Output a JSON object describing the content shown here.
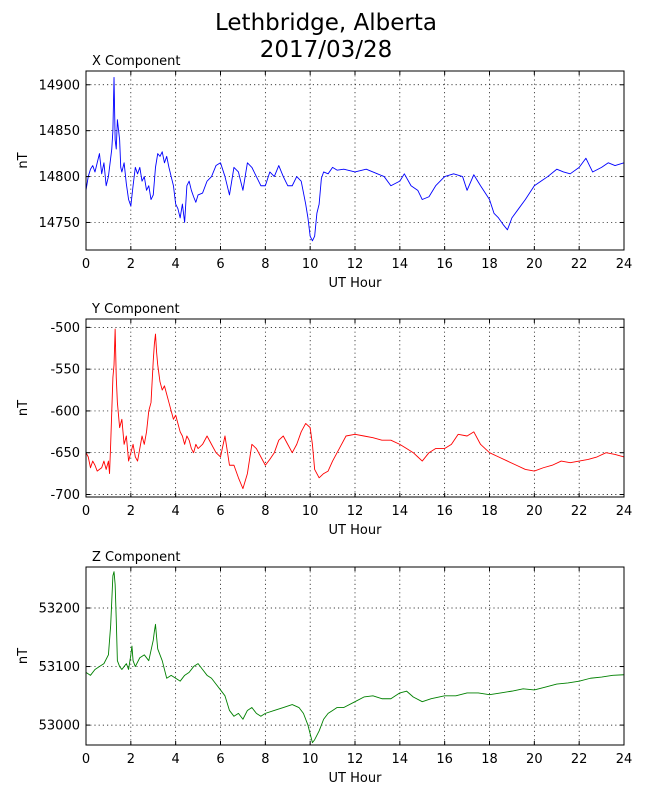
{
  "figure": {
    "title_line1": "Lethbridge, Alberta",
    "title_line2": "2017/03/28"
  },
  "chart_data": [
    {
      "type": "line",
      "title": "X Component",
      "xlabel": "UT Hour",
      "ylabel": "nT",
      "xlim": [
        0,
        24
      ],
      "ylim": [
        14720,
        14915
      ],
      "xticks": [
        0,
        2,
        4,
        6,
        8,
        10,
        12,
        14,
        16,
        18,
        20,
        22,
        24
      ],
      "yticks": [
        14750,
        14800,
        14850,
        14900
      ],
      "grid": true,
      "color": "#0000ff",
      "series": [
        {
          "x": [
            0,
            0.1,
            0.2,
            0.3,
            0.4,
            0.5,
            0.6,
            0.7,
            0.8,
            0.9,
            1.0,
            1.1,
            1.15,
            1.2,
            1.25,
            1.3,
            1.35,
            1.4,
            1.5,
            1.55,
            1.6,
            1.7,
            1.8,
            1.9,
            2.0,
            2.1,
            2.2,
            2.3,
            2.4,
            2.5,
            2.6,
            2.7,
            2.8,
            2.9,
            3.0,
            3.1,
            3.2,
            3.3,
            3.4,
            3.5,
            3.6,
            3.7,
            3.8,
            3.9,
            4.0,
            4.1,
            4.2,
            4.3,
            4.4,
            4.5,
            4.6,
            4.7,
            4.8,
            4.9,
            5.0,
            5.2,
            5.4,
            5.6,
            5.8,
            6.0,
            6.2,
            6.4,
            6.6,
            6.8,
            7.0,
            7.2,
            7.4,
            7.6,
            7.8,
            8.0,
            8.2,
            8.4,
            8.6,
            8.8,
            9.0,
            9.2,
            9.4,
            9.6,
            9.8,
            9.9,
            10.0,
            10.1,
            10.2,
            10.3,
            10.4,
            10.5,
            10.6,
            10.8,
            11.0,
            11.2,
            11.5,
            12.0,
            12.5,
            13.0,
            13.3,
            13.6,
            14.0,
            14.2,
            14.5,
            14.8,
            15.0,
            15.3,
            15.6,
            16.0,
            16.4,
            16.8,
            17.0,
            17.3,
            17.6,
            18.0,
            18.2,
            18.4,
            18.6,
            18.8,
            19.0,
            19.3,
            19.6,
            20.0,
            20.3,
            20.6,
            21.0,
            21.3,
            21.6,
            22.0,
            22.3,
            22.6,
            23.0,
            23.3,
            23.6,
            24.0
          ],
          "y": [
            14785,
            14800,
            14808,
            14812,
            14805,
            14815,
            14825,
            14803,
            14815,
            14790,
            14800,
            14820,
            14830,
            14850,
            14908,
            14840,
            14830,
            14862,
            14840,
            14810,
            14805,
            14815,
            14792,
            14775,
            14768,
            14790,
            14810,
            14803,
            14810,
            14795,
            14800,
            14785,
            14790,
            14775,
            14780,
            14810,
            14825,
            14822,
            14827,
            14815,
            14822,
            14810,
            14800,
            14790,
            14770,
            14765,
            14755,
            14770,
            14750,
            14790,
            14795,
            14785,
            14778,
            14772,
            14780,
            14782,
            14795,
            14800,
            14812,
            14815,
            14800,
            14780,
            14810,
            14805,
            14785,
            14815,
            14810,
            14800,
            14790,
            14790,
            14805,
            14800,
            14812,
            14800,
            14790,
            14790,
            14800,
            14795,
            14770,
            14755,
            14735,
            14730,
            14735,
            14760,
            14770,
            14798,
            14805,
            14803,
            14810,
            14807,
            14808,
            14805,
            14808,
            14803,
            14800,
            14790,
            14795,
            14803,
            14790,
            14785,
            14775,
            14778,
            14790,
            14800,
            14803,
            14800,
            14785,
            14802,
            14790,
            14775,
            14760,
            14755,
            14748,
            14742,
            14755,
            14765,
            14775,
            14790,
            14795,
            14800,
            14808,
            14805,
            14803,
            14810,
            14820,
            14805,
            14810,
            14815,
            14812,
            14815
          ]
        }
      ]
    },
    {
      "type": "line",
      "title": "Y Component",
      "xlabel": "UT Hour",
      "ylabel": "nT",
      "xlim": [
        0,
        24
      ],
      "ylim": [
        -703,
        -490
      ],
      "xticks": [
        0,
        2,
        4,
        6,
        8,
        10,
        12,
        14,
        16,
        18,
        20,
        22,
        24
      ],
      "yticks": [
        -700,
        -650,
        -600,
        -550,
        -500
      ],
      "grid": true,
      "color": "#ff0000",
      "series": [
        {
          "x": [
            0,
            0.1,
            0.2,
            0.3,
            0.4,
            0.5,
            0.6,
            0.7,
            0.8,
            0.9,
            1.0,
            1.05,
            1.1,
            1.2,
            1.25,
            1.3,
            1.35,
            1.4,
            1.5,
            1.6,
            1.7,
            1.8,
            1.9,
            2.0,
            2.1,
            2.2,
            2.3,
            2.4,
            2.5,
            2.6,
            2.7,
            2.8,
            2.9,
            3.0,
            3.05,
            3.1,
            3.15,
            3.2,
            3.3,
            3.4,
            3.5,
            3.6,
            3.7,
            3.8,
            3.9,
            4.0,
            4.1,
            4.2,
            4.3,
            4.4,
            4.5,
            4.6,
            4.7,
            4.8,
            4.9,
            5.0,
            5.2,
            5.4,
            5.6,
            5.8,
            6.0,
            6.2,
            6.4,
            6.6,
            6.8,
            7.0,
            7.2,
            7.4,
            7.6,
            7.8,
            8.0,
            8.2,
            8.4,
            8.6,
            8.8,
            9.0,
            9.2,
            9.4,
            9.6,
            9.8,
            10.0,
            10.1,
            10.2,
            10.4,
            10.6,
            10.8,
            11.0,
            11.3,
            11.6,
            12.0,
            12.4,
            12.8,
            13.2,
            13.6,
            14.0,
            14.3,
            14.6,
            14.8,
            15.0,
            15.3,
            15.6,
            16.0,
            16.3,
            16.6,
            17.0,
            17.3,
            17.6,
            18.0,
            18.4,
            18.8,
            19.2,
            19.6,
            20.0,
            20.4,
            20.8,
            21.2,
            21.6,
            22.0,
            22.4,
            22.8,
            23.2,
            23.6,
            24.0
          ],
          "y": [
            -650,
            -655,
            -668,
            -660,
            -665,
            -672,
            -670,
            -668,
            -660,
            -670,
            -660,
            -675,
            -640,
            -560,
            -545,
            -502,
            -560,
            -590,
            -620,
            -610,
            -640,
            -630,
            -660,
            -650,
            -640,
            -655,
            -660,
            -645,
            -630,
            -640,
            -625,
            -600,
            -590,
            -540,
            -520,
            -508,
            -530,
            -545,
            -565,
            -575,
            -570,
            -580,
            -590,
            -600,
            -610,
            -605,
            -615,
            -625,
            -630,
            -640,
            -630,
            -635,
            -645,
            -650,
            -640,
            -645,
            -640,
            -630,
            -640,
            -650,
            -655,
            -630,
            -665,
            -665,
            -680,
            -693,
            -675,
            -640,
            -645,
            -655,
            -665,
            -658,
            -650,
            -635,
            -630,
            -640,
            -650,
            -640,
            -625,
            -615,
            -620,
            -640,
            -670,
            -680,
            -675,
            -672,
            -660,
            -645,
            -630,
            -628,
            -630,
            -632,
            -635,
            -635,
            -640,
            -645,
            -650,
            -655,
            -660,
            -650,
            -645,
            -645,
            -640,
            -628,
            -630,
            -625,
            -640,
            -650,
            -655,
            -660,
            -665,
            -670,
            -672,
            -668,
            -665,
            -660,
            -662,
            -660,
            -658,
            -655,
            -650,
            -652,
            -655
          ]
        }
      ]
    },
    {
      "type": "line",
      "title": "Z Component",
      "xlabel": "UT Hour",
      "ylabel": "nT",
      "xlim": [
        0,
        24
      ],
      "ylim": [
        52966,
        53270
      ],
      "xticks": [
        0,
        2,
        4,
        6,
        8,
        10,
        12,
        14,
        16,
        18,
        20,
        22,
        24
      ],
      "yticks": [
        53000,
        53100,
        53200
      ],
      "grid": true,
      "color": "#008000",
      "series": [
        {
          "x": [
            0,
            0.2,
            0.4,
            0.6,
            0.8,
            1.0,
            1.1,
            1.2,
            1.25,
            1.3,
            1.35,
            1.4,
            1.5,
            1.6,
            1.7,
            1.8,
            1.9,
            2.0,
            2.05,
            2.1,
            2.2,
            2.4,
            2.6,
            2.8,
            3.0,
            3.05,
            3.1,
            3.15,
            3.2,
            3.4,
            3.6,
            3.8,
            4.0,
            4.2,
            4.4,
            4.6,
            4.8,
            5.0,
            5.2,
            5.4,
            5.6,
            5.8,
            6.0,
            6.2,
            6.4,
            6.6,
            6.8,
            7.0,
            7.2,
            7.4,
            7.6,
            7.8,
            8.0,
            8.4,
            8.8,
            9.2,
            9.5,
            9.7,
            9.9,
            10.0,
            10.1,
            10.2,
            10.4,
            10.6,
            10.8,
            11.0,
            11.2,
            11.5,
            12.0,
            12.4,
            12.8,
            13.2,
            13.6,
            14.0,
            14.3,
            14.6,
            15.0,
            15.4,
            16.0,
            16.5,
            17.0,
            17.5,
            18.0,
            18.5,
            19.0,
            19.5,
            20.0,
            20.5,
            21.0,
            21.5,
            22.0,
            22.5,
            23.0,
            23.5,
            24.0
          ],
          "y": [
            53090,
            53085,
            53095,
            53100,
            53105,
            53120,
            53170,
            53255,
            53262,
            53240,
            53180,
            53110,
            53100,
            53095,
            53100,
            53105,
            53095,
            53120,
            53135,
            53110,
            53100,
            53115,
            53120,
            53110,
            53145,
            53160,
            53172,
            53150,
            53130,
            53110,
            53080,
            53085,
            53080,
            53075,
            53085,
            53090,
            53100,
            53105,
            53095,
            53085,
            53080,
            53070,
            53060,
            53050,
            53025,
            53015,
            53020,
            53010,
            53025,
            53030,
            53020,
            53015,
            53020,
            53025,
            53030,
            53035,
            53030,
            53020,
            53000,
            52985,
            52970,
            52975,
            52990,
            53010,
            53020,
            53025,
            53030,
            53030,
            53040,
            53048,
            53050,
            53045,
            53045,
            53055,
            53058,
            53048,
            53040,
            53045,
            53050,
            53050,
            53055,
            53055,
            53052,
            53055,
            53058,
            53062,
            53060,
            53065,
            53070,
            53072,
            53075,
            53080,
            53082,
            53085,
            53086
          ]
        }
      ]
    }
  ]
}
